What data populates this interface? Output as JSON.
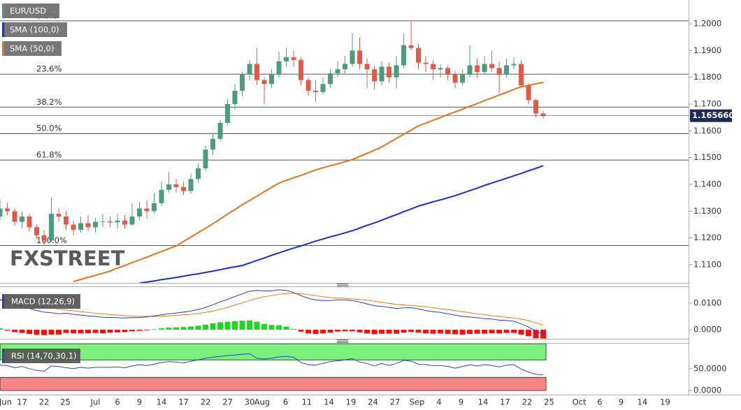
{
  "chart_data": [
    {
      "type": "candlestick",
      "name": "EUR/USD",
      "up_color": "#4d9a7c",
      "down_color": "#e05a4a",
      "xlim": [
        0,
        93.8
      ],
      "xticks": [
        {
          "value": 0.75,
          "label": "Jun"
        },
        {
          "value": 3,
          "label": "17"
        },
        {
          "value": 6,
          "label": "22"
        },
        {
          "value": 8.9,
          "label": "25"
        },
        {
          "value": 13,
          "label": "Jul"
        },
        {
          "value": 16,
          "label": "6"
        },
        {
          "value": 19,
          "label": "9"
        },
        {
          "value": 22,
          "label": "14"
        },
        {
          "value": 25,
          "label": "17"
        },
        {
          "value": 28,
          "label": "22"
        },
        {
          "value": 31,
          "label": "27"
        },
        {
          "value": 34,
          "label": "30"
        },
        {
          "value": 35.7,
          "label": "Aug"
        },
        {
          "value": 38.9,
          "label": "6"
        },
        {
          "value": 41.8,
          "label": "11"
        },
        {
          "value": 44.8,
          "label": "14"
        },
        {
          "value": 47.8,
          "label": "19"
        },
        {
          "value": 50.8,
          "label": "24"
        },
        {
          "value": 53.8,
          "label": "27"
        },
        {
          "value": 56.8,
          "label": "Sep"
        },
        {
          "value": 59.8,
          "label": "4"
        },
        {
          "value": 62.8,
          "label": "9"
        },
        {
          "value": 65.8,
          "label": "14"
        },
        {
          "value": 68.8,
          "label": "17"
        },
        {
          "value": 71.8,
          "label": "22"
        },
        {
          "value": 74.8,
          "label": "25"
        },
        {
          "value": 78.9,
          "label": "Oct"
        },
        {
          "value": 81.7,
          "label": "6"
        },
        {
          "value": 84.6,
          "label": "9"
        },
        {
          "value": 87.5,
          "label": "14"
        },
        {
          "value": 90.6,
          "label": "19"
        }
      ],
      "ylim": [
        1.1032,
        1.2089
      ],
      "yticks": [
        {
          "value": 1.11,
          "label": "1.1100"
        },
        {
          "value": 1.12,
          "label": "1.1200"
        },
        {
          "value": 1.13,
          "label": "1.1300"
        },
        {
          "value": 1.14,
          "label": "1.1400"
        },
        {
          "value": 1.15,
          "label": "1.1500"
        },
        {
          "value": 1.16,
          "label": "1.1600"
        },
        {
          "value": 1.17,
          "label": "1.1700"
        },
        {
          "value": 1.18,
          "label": "1.1800"
        },
        {
          "value": 1.19,
          "label": "1.1900"
        },
        {
          "value": 1.2,
          "label": "1.2000"
        }
      ],
      "last_price": {
        "value": 1.16566,
        "label": "1.165660"
      },
      "fibonacci": [
        {
          "label": "0.0%",
          "value": 1.2011
        },
        {
          "label": "23.6%",
          "value": 1.1812
        },
        {
          "label": "38.2%",
          "value": 1.1689
        },
        {
          "label": "50.0%",
          "value": 1.159
        },
        {
          "label": "61.8%",
          "value": 1.1491
        },
        {
          "label": "100.0%",
          "value": 1.1172
        }
      ],
      "ohlc": [
        [
          1.128,
          1.1345,
          1.1265,
          1.131
        ],
        [
          1.131,
          1.133,
          1.1285,
          1.13
        ],
        [
          1.13,
          1.131,
          1.1245,
          1.126
        ],
        [
          1.126,
          1.13,
          1.1235,
          1.128
        ],
        [
          1.128,
          1.129,
          1.1225,
          1.124
        ],
        [
          1.124,
          1.125,
          1.1195,
          1.121
        ],
        [
          1.121,
          1.123,
          1.1172,
          1.119
        ],
        [
          1.119,
          1.135,
          1.1185,
          1.129
        ],
        [
          1.129,
          1.131,
          1.126,
          1.128
        ],
        [
          1.128,
          1.13,
          1.123,
          1.125
        ],
        [
          1.125,
          1.1265,
          1.121,
          1.123
        ],
        [
          1.123,
          1.128,
          1.122,
          1.1255
        ],
        [
          1.1255,
          1.1285,
          1.1225,
          1.124
        ],
        [
          1.124,
          1.1275,
          1.122,
          1.126
        ],
        [
          1.126,
          1.129,
          1.124,
          1.1262
        ],
        [
          1.1262,
          1.128,
          1.124,
          1.1258
        ],
        [
          1.1258,
          1.129,
          1.1235,
          1.1265
        ],
        [
          1.1265,
          1.1285,
          1.1235,
          1.125
        ],
        [
          1.125,
          1.133,
          1.1245,
          1.128
        ],
        [
          1.128,
          1.1335,
          1.1265,
          1.131
        ],
        [
          1.131,
          1.134,
          1.127,
          1.13
        ],
        [
          1.13,
          1.137,
          1.129,
          1.133
        ],
        [
          1.133,
          1.141,
          1.132,
          1.138
        ],
        [
          1.138,
          1.1445,
          1.137,
          1.14
        ],
        [
          1.14,
          1.142,
          1.137,
          1.139
        ],
        [
          1.139,
          1.141,
          1.136,
          1.1375
        ],
        [
          1.1375,
          1.144,
          1.1365,
          1.142
        ],
        [
          1.142,
          1.148,
          1.1405,
          1.146
        ],
        [
          1.146,
          1.1545,
          1.145,
          1.153
        ],
        [
          1.153,
          1.159,
          1.151,
          1.157
        ],
        [
          1.157,
          1.164,
          1.156,
          1.163
        ],
        [
          1.163,
          1.172,
          1.162,
          1.17
        ],
        [
          1.17,
          1.1775,
          1.168,
          1.175
        ],
        [
          1.175,
          1.182,
          1.173,
          1.181
        ],
        [
          1.181,
          1.1865,
          1.179,
          1.185
        ],
        [
          1.185,
          1.191,
          1.177,
          1.179
        ],
        [
          1.179,
          1.18,
          1.17,
          1.1775
        ],
        [
          1.1775,
          1.183,
          1.176,
          1.181
        ],
        [
          1.181,
          1.1895,
          1.18,
          1.186
        ],
        [
          1.186,
          1.191,
          1.184,
          1.1875
        ],
        [
          1.1875,
          1.19,
          1.184,
          1.1865
        ],
        [
          1.1865,
          1.1875,
          1.177,
          1.179
        ],
        [
          1.179,
          1.18,
          1.173,
          1.175
        ],
        [
          1.175,
          1.179,
          1.171,
          1.1745
        ],
        [
          1.1745,
          1.18,
          1.1735,
          1.1775
        ],
        [
          1.1775,
          1.183,
          1.176,
          1.1815
        ],
        [
          1.1815,
          1.186,
          1.18,
          1.183
        ],
        [
          1.183,
          1.188,
          1.1815,
          1.185
        ],
        [
          1.185,
          1.1965,
          1.184,
          1.19
        ],
        [
          1.19,
          1.195,
          1.183,
          1.185
        ],
        [
          1.185,
          1.187,
          1.176,
          1.183
        ],
        [
          1.183,
          1.1845,
          1.1755,
          1.1785
        ],
        [
          1.1785,
          1.186,
          1.177,
          1.184
        ],
        [
          1.184,
          1.1855,
          1.178,
          1.18
        ],
        [
          1.18,
          1.188,
          1.176,
          1.1845
        ],
        [
          1.1845,
          1.1965,
          1.1835,
          1.192
        ],
        [
          1.192,
          1.2011,
          1.19,
          1.191
        ],
        [
          1.191,
          1.1925,
          1.183,
          1.1855
        ],
        [
          1.1855,
          1.188,
          1.182,
          1.185
        ],
        [
          1.185,
          1.1865,
          1.179,
          1.183
        ],
        [
          1.183,
          1.185,
          1.18,
          1.1835
        ],
        [
          1.1835,
          1.1845,
          1.179,
          1.181
        ],
        [
          1.181,
          1.1825,
          1.176,
          1.178
        ],
        [
          1.178,
          1.183,
          1.177,
          1.181
        ],
        [
          1.181,
          1.192,
          1.18,
          1.1845
        ],
        [
          1.1845,
          1.187,
          1.18,
          1.182
        ],
        [
          1.182,
          1.188,
          1.181,
          1.185
        ],
        [
          1.185,
          1.19,
          1.182,
          1.1835
        ],
        [
          1.1835,
          1.186,
          1.174,
          1.181
        ],
        [
          1.181,
          1.187,
          1.18,
          1.1845
        ],
        [
          1.1845,
          1.1875,
          1.183,
          1.185
        ],
        [
          1.185,
          1.1865,
          1.176,
          1.177
        ],
        [
          1.177,
          1.178,
          1.17,
          1.1715
        ],
        [
          1.1715,
          1.172,
          1.165,
          1.1665
        ],
        [
          1.1665,
          1.1675,
          1.1645,
          1.1657
        ]
      ],
      "series": [
        {
          "name": "SMA (100,0)",
          "color": "#1a2fd0",
          "values": [
            null,
            null,
            null,
            null,
            null,
            null,
            null,
            null,
            null,
            null,
            null,
            null,
            null,
            null,
            null,
            null,
            null,
            null,
            null,
            1.1031,
            1.1035,
            1.1039,
            1.1044,
            1.1048,
            1.1052,
            1.1057,
            1.1062,
            1.1066,
            1.1071,
            1.1076,
            1.1081,
            1.1087,
            1.1092,
            1.1097,
            1.1106,
            1.1116,
            1.1125,
            1.1135,
            1.1144,
            1.1153,
            1.1162,
            1.117,
            1.1179,
            1.1188,
            1.1196,
            1.1204,
            1.1211,
            1.1219,
            1.1227,
            1.1237,
            1.1247,
            1.1256,
            1.1266,
            1.1277,
            1.1287,
            1.1298,
            1.1308,
            1.1319,
            1.1327,
            1.1335,
            1.1342,
            1.135,
            1.1358,
            1.1367,
            1.1377,
            1.1386,
            1.1396,
            1.1405,
            1.1414,
            1.1423,
            1.1432,
            1.1441,
            1.1451,
            1.146,
            1.147
          ]
        },
        {
          "name": "SMA (50,0)",
          "color": "#e8711a",
          "values": [
            null,
            null,
            null,
            null,
            null,
            null,
            null,
            null,
            null,
            null,
            1.1037,
            1.1045,
            1.1053,
            1.106,
            1.1068,
            1.1076,
            1.1087,
            1.1097,
            1.1108,
            1.1118,
            1.1128,
            1.1139,
            1.1149,
            1.116,
            1.117,
            1.1187,
            1.1203,
            1.122,
            1.1236,
            1.1253,
            1.1271,
            1.1289,
            1.1306,
            1.1324,
            1.134,
            1.1356,
            1.1373,
            1.1389,
            1.1405,
            1.1415,
            1.1425,
            1.1434,
            1.1444,
            1.1454,
            1.1462,
            1.147,
            1.1477,
            1.1485,
            1.1493,
            1.1505,
            1.1516,
            1.1528,
            1.154,
            1.1556,
            1.1572,
            1.1587,
            1.1603,
            1.1619,
            1.1629,
            1.164,
            1.165,
            1.1661,
            1.1671,
            1.1681,
            1.1692,
            1.1702,
            1.1713,
            1.1723,
            1.1734,
            1.1744,
            1.1755,
            1.1765,
            1.177,
            1.1776,
            1.1781
          ]
        }
      ]
    },
    {
      "type": "macd",
      "title": "MACD (12,26,9)",
      "macd_color": "#2b3bd6",
      "signal_color": "#f07a1a",
      "hist_up_color": "#1ed81e",
      "hist_down_color": "#f01010",
      "ylim": [
        -0.0034,
        0.0163
      ],
      "yticks": [
        {
          "value": 0,
          "label": "0.0000"
        },
        {
          "value": 0.01,
          "label": "0.0100"
        }
      ],
      "macd": [
        0.0115,
        0.0105,
        0.0095,
        0.0088,
        0.008,
        0.0072,
        0.0066,
        0.0064,
        0.006,
        0.0062,
        0.0058,
        0.0055,
        0.0052,
        0.005,
        0.0047,
        0.0046,
        0.0045,
        0.0044,
        0.0045,
        0.0046,
        0.0048,
        0.0052,
        0.0056,
        0.006,
        0.0063,
        0.0066,
        0.007,
        0.0076,
        0.0084,
        0.0094,
        0.0105,
        0.0114,
        0.0125,
        0.0135,
        0.0145,
        0.0148,
        0.0146,
        0.0146,
        0.015,
        0.0148,
        0.014,
        0.0128,
        0.0118,
        0.0112,
        0.011,
        0.011,
        0.0112,
        0.0112,
        0.011,
        0.0104,
        0.0097,
        0.009,
        0.0088,
        0.0084,
        0.008,
        0.0082,
        0.0083,
        0.0078,
        0.0072,
        0.0068,
        0.0065,
        0.006,
        0.0055,
        0.005,
        0.0048,
        0.0045,
        0.0042,
        0.004,
        0.0036,
        0.0035,
        0.0032,
        0.0022,
        0.001,
        -0.0006,
        -0.0016
      ],
      "signal": [
        0.011,
        0.0108,
        0.0104,
        0.01,
        0.0096,
        0.0091,
        0.0086,
        0.0082,
        0.0078,
        0.0074,
        0.0071,
        0.0068,
        0.0065,
        0.0062,
        0.006,
        0.0057,
        0.0055,
        0.0053,
        0.0051,
        0.005,
        0.005,
        0.005,
        0.0051,
        0.0052,
        0.0054,
        0.0056,
        0.0058,
        0.0061,
        0.0065,
        0.007,
        0.0077,
        0.0084,
        0.0093,
        0.0101,
        0.011,
        0.0118,
        0.0124,
        0.0128,
        0.0133,
        0.0136,
        0.0137,
        0.0135,
        0.0132,
        0.0128,
        0.0124,
        0.0121,
        0.0119,
        0.0118,
        0.0116,
        0.0114,
        0.0111,
        0.0107,
        0.0103,
        0.0099,
        0.0095,
        0.0093,
        0.0091,
        0.0089,
        0.0086,
        0.0083,
        0.0079,
        0.0076,
        0.0072,
        0.0068,
        0.0064,
        0.006,
        0.0057,
        0.0053,
        0.005,
        0.0047,
        0.0044,
        0.004,
        0.0034,
        0.0026,
        0.0017
      ],
      "histogram": [
        0.0005,
        -0.0003,
        -0.0009,
        -0.0012,
        -0.0016,
        -0.0019,
        -0.002,
        -0.0018,
        -0.0018,
        -0.0012,
        -0.0013,
        -0.0013,
        -0.0013,
        -0.0012,
        -0.0013,
        -0.0011,
        -0.001,
        -0.0009,
        -0.0006,
        -0.0004,
        -0.0002,
        0.0002,
        0.0005,
        0.0008,
        0.0009,
        0.001,
        0.0012,
        0.0015,
        0.0019,
        0.0024,
        0.0028,
        0.003,
        0.0032,
        0.0034,
        0.0035,
        0.003,
        0.0022,
        0.0018,
        0.0017,
        0.0012,
        0.0003,
        -0.0007,
        -0.0014,
        -0.0016,
        -0.0014,
        -0.0011,
        -0.0007,
        -0.0006,
        -0.0006,
        -0.001,
        -0.0014,
        -0.0017,
        -0.0015,
        -0.0015,
        -0.0015,
        -0.0011,
        -0.0008,
        -0.0011,
        -0.0014,
        -0.0015,
        -0.0014,
        -0.0016,
        -0.0017,
        -0.0018,
        -0.0016,
        -0.0015,
        -0.0015,
        -0.0013,
        -0.0014,
        -0.0012,
        -0.0012,
        -0.0018,
        -0.0024,
        -0.0032,
        -0.0033
      ]
    },
    {
      "type": "rsi",
      "title": "RSI (14,70,30,1)",
      "color": "#3040d0",
      "overbought": 70,
      "oversold": 30,
      "overbought_color": "#7df07d",
      "oversold_color": "#f58585",
      "ylim": [
        -9.6,
        107.2
      ],
      "yticks": [
        {
          "value": 0,
          "label": "0.0000"
        },
        {
          "value": 50,
          "label": "50.0000"
        }
      ],
      "values": [
        58,
        57,
        52,
        55,
        50,
        46,
        44,
        56,
        55,
        52,
        50,
        53,
        51,
        53,
        53,
        53,
        54,
        52,
        56,
        59,
        57,
        60,
        64,
        66,
        65,
        63,
        67,
        70,
        74,
        76,
        78,
        80,
        81,
        83,
        84,
        74,
        72,
        74,
        77,
        78,
        76,
        64,
        59,
        58,
        62,
        66,
        68,
        70,
        73,
        65,
        62,
        56,
        62,
        57,
        62,
        69,
        67,
        60,
        59,
        57,
        57,
        55,
        51,
        55,
        59,
        56,
        59,
        57,
        54,
        58,
        59,
        49,
        42,
        37,
        36
      ]
    }
  ],
  "watermark": [
    "FX",
    "STREET"
  ]
}
